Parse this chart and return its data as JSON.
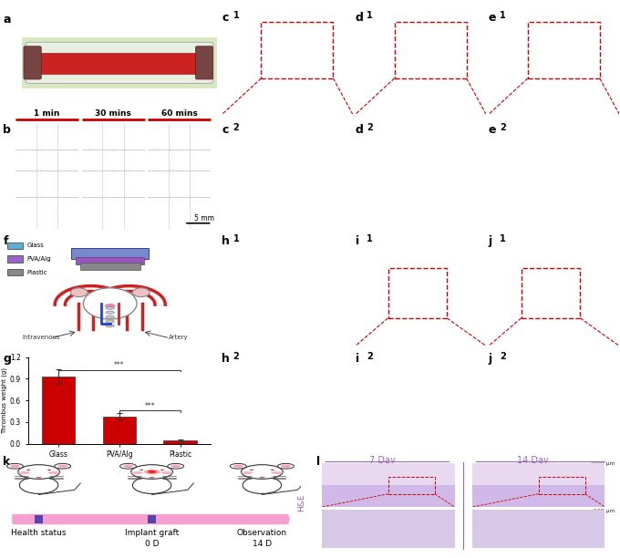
{
  "fig_width": 6.8,
  "fig_height": 6.12,
  "bg_color": "#ffffff",
  "bar_values": [
    0.93,
    0.38,
    0.04
  ],
  "bar_errors": [
    0.1,
    0.05,
    0.015
  ],
  "bar_categories": [
    "Glass",
    "PVA/Alg",
    "Plastic"
  ],
  "bar_color": "#cc0000",
  "bar_ylabel": "Thrombus weight (g)",
  "bar_ylim": [
    0,
    1.2
  ],
  "bar_yticks": [
    0.0,
    0.3,
    0.6,
    0.9,
    1.2
  ],
  "legend_items": [
    {
      "label": "Glass",
      "color": "#5bafd6"
    },
    {
      "label": "PVA/Alg",
      "color": "#9966cc"
    },
    {
      "label": "Plastic",
      "color": "#888888"
    }
  ],
  "timeline_color": "#f5a0d0",
  "timeline_marker_color": "#5544aa",
  "timeline_labels": [
    "Health status",
    "Implant graft",
    "Observation"
  ],
  "timeline_days": [
    "",
    "0 D",
    "14 D"
  ],
  "seven_day_color": "#9966bb",
  "fourteen_day_color": "#9966bb",
  "panel_a_bg": "#e8e0cc",
  "panel_b_bg": "#d8d0c0",
  "sem_top_bg": "#808080",
  "sem_bot_bg": "#888888",
  "sem_h1_bg": "#707070",
  "sem_h2_bg": "#686868",
  "sem_i1_bg": "#909090",
  "sem_i2_bg": "#a0a0a0",
  "sem_j1_bg": "#b0b0b0",
  "sem_j2_bg": "#c0c0c0",
  "he_top_bg": "#e0d0e8",
  "he_bot_bg": "#c8b0d0"
}
